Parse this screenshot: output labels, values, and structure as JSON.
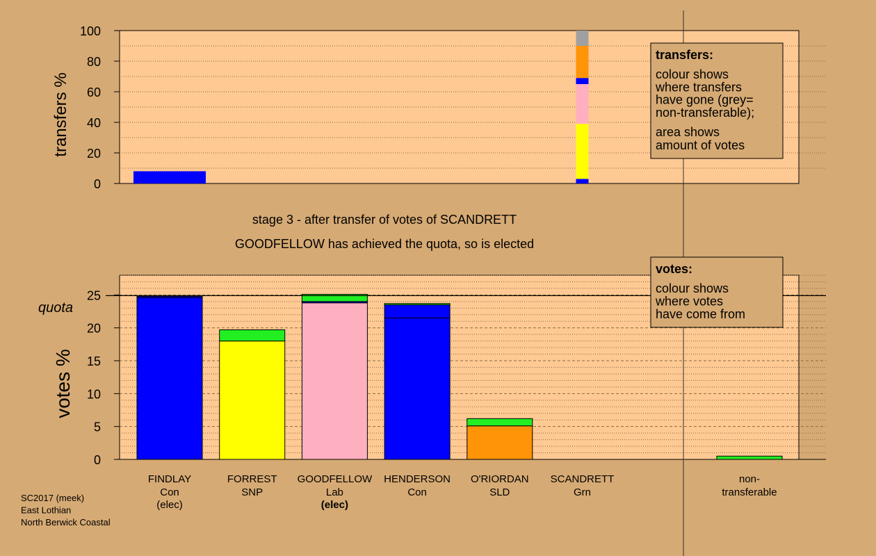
{
  "chart_data": {
    "type": "bar",
    "stage_title": "stage 3 - after transfer of votes of SCANDRETT",
    "stage_subtitle": "GOODFELLOW has achieved the quota, so is elected",
    "quota": 24.9,
    "quota_label": "quota",
    "colors": {
      "background": "#D6AA74",
      "plot_bg": "#FFC993",
      "Con": "#0000FF",
      "SNP": "#FFFF00",
      "Lab": "#FFB0C0",
      "SLD": "#FF9408",
      "Grn": "#22EE22",
      "nontransferable": "#A0A0A0"
    },
    "top_chart": {
      "ylabel": "transfers %",
      "ylim": [
        0,
        100
      ],
      "yticks": [
        0,
        20,
        40,
        60,
        80,
        100
      ],
      "bars": [
        {
          "column": "FINDLAY",
          "segments": [
            {
              "party": "Con",
              "value": 8
            }
          ]
        },
        {
          "column": "SCANDRETT",
          "segments": [
            {
              "party": "Con",
              "value": 3
            },
            {
              "party": "SNP",
              "value": 36
            },
            {
              "party": "Lab",
              "value": 26
            },
            {
              "party": "Con",
              "value": 4
            },
            {
              "party": "SLD",
              "value": 21
            },
            {
              "party": "nontransferable",
              "value": 10
            }
          ]
        }
      ],
      "legend": {
        "title": "transfers:",
        "lines_a": [
          "colour shows",
          "where transfers",
          "have gone (grey=",
          "non-transferable);"
        ],
        "lines_b": [
          "area shows",
          "amount of votes"
        ]
      }
    },
    "bottom_chart": {
      "ylabel": "votes %",
      "ylim": [
        0,
        28
      ],
      "yticks": [
        0,
        5,
        10,
        15,
        20,
        25
      ],
      "candidates": [
        {
          "name": "FINDLAY",
          "party": "Con",
          "status": "(elec)",
          "status_bold": false,
          "segments": [
            {
              "party": "Con",
              "value": 24.6
            },
            {
              "party": "Con",
              "value": 0.2
            }
          ]
        },
        {
          "name": "FORREST",
          "party": "SNP",
          "status": "",
          "status_bold": false,
          "segments": [
            {
              "party": "SNP",
              "value": 18.0
            },
            {
              "party": "Grn",
              "value": 1.7
            }
          ]
        },
        {
          "name": "GOODFELLOW",
          "party": "Lab",
          "status": "(elec)",
          "status_bold": true,
          "segments": [
            {
              "party": "Lab",
              "value": 23.8
            },
            {
              "party": "Con",
              "value": 0.2
            },
            {
              "party": "Grn",
              "value": 1.1
            }
          ]
        },
        {
          "name": "HENDERSON",
          "party": "Con",
          "status": "",
          "status_bold": false,
          "segments": [
            {
              "party": "Con",
              "value": 21.5
            },
            {
              "party": "Con",
              "value": 2.0
            },
            {
              "party": "Grn",
              "value": 0.2
            }
          ]
        },
        {
          "name": "O'RIORDAN",
          "party": "SLD",
          "status": "",
          "status_bold": false,
          "segments": [
            {
              "party": "SLD",
              "value": 5.1
            },
            {
              "party": "Grn",
              "value": 1.1
            }
          ]
        },
        {
          "name": "SCANDRETT",
          "party": "Grn",
          "status": "",
          "status_bold": false,
          "segments": [
            {
              "party": "Grn",
              "value": 0.0
            }
          ]
        }
      ],
      "nontransferable": {
        "label_lines": [
          "non-",
          "transferable"
        ],
        "segments": [
          {
            "party": "Grn",
            "value": 0.5
          }
        ]
      },
      "legend": {
        "title": "votes:",
        "lines": [
          "colour shows",
          "where votes",
          "have come from"
        ]
      }
    },
    "footer": {
      "lines": [
        "SC2017 (meek)",
        "East Lothian",
        "North Berwick Coastal"
      ]
    }
  }
}
